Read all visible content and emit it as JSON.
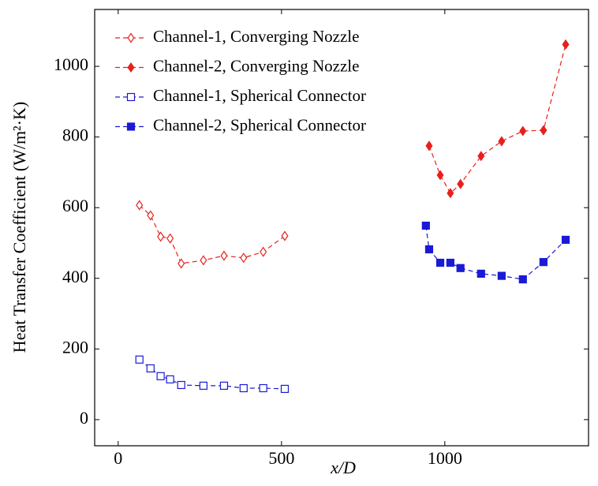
{
  "chart_data": {
    "type": "line",
    "x_label": "x/D",
    "y_label": "Heat Transfer Coefficient (W/m²·K)",
    "xlim": [
      -72,
      1440
    ],
    "ylim": [
      -74,
      1161
    ],
    "xticks": [
      0,
      500,
      1000
    ],
    "yticks": [
      0,
      200,
      400,
      600,
      800,
      1000
    ],
    "legend": "upper left",
    "line_style": "dashed",
    "series": [
      {
        "name": "Channel-1, Converging Nozzle",
        "color": "#e8201c",
        "marker": "diamond-open",
        "x": [
          65,
          99,
          130,
          159,
          193,
          261,
          324,
          384,
          444,
          510
        ],
        "values": [
          607,
          578,
          518,
          513,
          442,
          451,
          464,
          458,
          475,
          520
        ]
      },
      {
        "name": "Channel-2, Converging Nozzle",
        "color": "#e8201c",
        "marker": "diamond-filled",
        "x": [
          952,
          986,
          1017,
          1048,
          1111,
          1174,
          1239,
          1302,
          1370
        ],
        "values": [
          775,
          692,
          641,
          667,
          746,
          788,
          817,
          819,
          1062
        ]
      },
      {
        "name": "Channel-1, Spherical Connector",
        "color": "#1a1ad6",
        "marker": "square-open",
        "x": [
          65,
          99,
          130,
          159,
          193,
          261,
          324,
          384,
          444,
          510
        ],
        "values": [
          170,
          145,
          123,
          114,
          98,
          96,
          96,
          89,
          89,
          87
        ]
      },
      {
        "name": "Channel-2, Spherical Connector",
        "color": "#1a1ad6",
        "marker": "square-filled",
        "x": [
          942,
          952,
          986,
          1017,
          1048,
          1111,
          1174,
          1239,
          1302,
          1370
        ],
        "values": [
          549,
          482,
          444,
          444,
          429,
          413,
          407,
          397,
          446,
          509
        ]
      }
    ]
  }
}
